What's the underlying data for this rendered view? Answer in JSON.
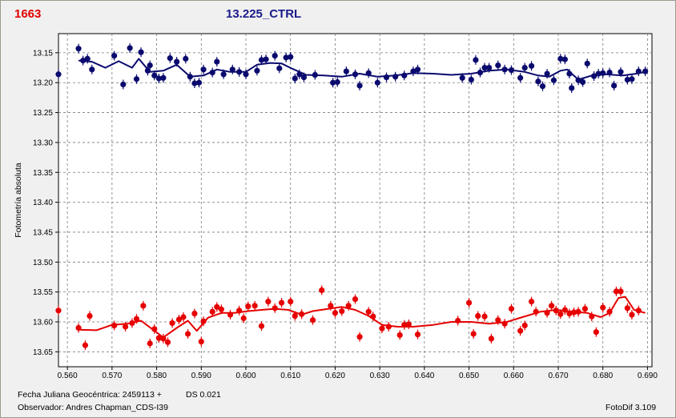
{
  "header": {
    "id_label": "1663",
    "title": "13.225_CTRL"
  },
  "footer": {
    "date_label": "Fecha Juliana Geocéntrica: 2459113 +",
    "ds_label": "DS 0.021",
    "observer_label": "Observador: Andres Chapman_CDS-I39",
    "software_label": "FotoDif 3.109"
  },
  "colors": {
    "blue_series": "#0a0a6e",
    "red_series": "#e60000",
    "plot_bg": "#ffffff",
    "grid": "#7a7a7a"
  },
  "chart_data": {
    "type": "scatter",
    "title": "13.225_CTRL",
    "xlabel": "",
    "ylabel": "Fotometría absoluta",
    "xlim": [
      0.558,
      0.691
    ],
    "ylim": [
      13.675,
      13.118
    ],
    "y_reversed": true,
    "grid": true,
    "xticks": [
      "0.560",
      "0.570",
      "0.580",
      "0.590",
      "0.600",
      "0.610",
      "0.620",
      "0.630",
      "0.640",
      "0.650",
      "0.660",
      "0.670",
      "0.680",
      "0.690"
    ],
    "yticks": [
      "13.15",
      "13.20",
      "13.25",
      "13.30",
      "13.35",
      "13.40",
      "13.45",
      "13.50",
      "13.55",
      "13.60",
      "13.65"
    ],
    "series": [
      {
        "color": "blue",
        "points": [
          [
            0.558,
            13.186
          ],
          [
            0.5625,
            13.143
          ],
          [
            0.5635,
            13.163
          ],
          [
            0.5645,
            13.16
          ],
          [
            0.5655,
            13.178
          ],
          [
            0.5705,
            13.155
          ],
          [
            0.5725,
            13.203
          ],
          [
            0.574,
            13.142
          ],
          [
            0.5755,
            13.194
          ],
          [
            0.5765,
            13.149
          ],
          [
            0.578,
            13.18
          ],
          [
            0.5785,
            13.171
          ],
          [
            0.5795,
            13.188
          ],
          [
            0.5805,
            13.193
          ],
          [
            0.5815,
            13.192
          ],
          [
            0.583,
            13.159
          ],
          [
            0.5845,
            13.165
          ],
          [
            0.5865,
            13.16
          ],
          [
            0.5875,
            13.19
          ],
          [
            0.5885,
            13.201
          ],
          [
            0.5895,
            13.2
          ],
          [
            0.5905,
            13.178
          ],
          [
            0.5925,
            13.183
          ],
          [
            0.5935,
            13.165
          ],
          [
            0.595,
            13.186
          ],
          [
            0.597,
            13.178
          ],
          [
            0.5985,
            13.182
          ],
          [
            0.6,
            13.186
          ],
          [
            0.6025,
            13.18
          ],
          [
            0.6035,
            13.162
          ],
          [
            0.6045,
            13.161
          ],
          [
            0.6065,
            13.155
          ],
          [
            0.6075,
            13.176
          ],
          [
            0.609,
            13.158
          ],
          [
            0.61,
            13.157
          ],
          [
            0.611,
            13.193
          ],
          [
            0.612,
            13.186
          ],
          [
            0.613,
            13.191
          ],
          [
            0.6155,
            13.187
          ],
          [
            0.6195,
            13.2
          ],
          [
            0.6205,
            13.199
          ],
          [
            0.6225,
            13.181
          ],
          [
            0.6245,
            13.186
          ],
          [
            0.6255,
            13.205
          ],
          [
            0.6275,
            13.184
          ],
          [
            0.6295,
            13.2
          ],
          [
            0.6315,
            13.191
          ],
          [
            0.6335,
            13.19
          ],
          [
            0.6355,
            13.188
          ],
          [
            0.6375,
            13.181
          ],
          [
            0.6385,
            13.178
          ],
          [
            0.6485,
            13.192
          ],
          [
            0.6505,
            13.195
          ],
          [
            0.6515,
            13.162
          ],
          [
            0.6525,
            13.183
          ],
          [
            0.6535,
            13.175
          ],
          [
            0.6545,
            13.175
          ],
          [
            0.6565,
            13.171
          ],
          [
            0.658,
            13.178
          ],
          [
            0.6595,
            13.179
          ],
          [
            0.6615,
            13.192
          ],
          [
            0.6625,
            13.175
          ],
          [
            0.664,
            13.172
          ],
          [
            0.6655,
            13.198
          ],
          [
            0.6665,
            13.206
          ],
          [
            0.6675,
            13.185
          ],
          [
            0.669,
            13.196
          ],
          [
            0.6705,
            13.16
          ],
          [
            0.6715,
            13.161
          ],
          [
            0.6725,
            13.185
          ],
          [
            0.673,
            13.209
          ],
          [
            0.6745,
            13.196
          ],
          [
            0.6755,
            13.199
          ],
          [
            0.6765,
            13.168
          ],
          [
            0.678,
            13.189
          ],
          [
            0.679,
            13.185
          ],
          [
            0.68,
            13.184
          ],
          [
            0.6815,
            13.183
          ],
          [
            0.6825,
            13.205
          ],
          [
            0.684,
            13.182
          ],
          [
            0.6855,
            13.195
          ],
          [
            0.6865,
            13.194
          ],
          [
            0.688,
            13.181
          ],
          [
            0.6895,
            13.181
          ]
        ],
        "smooth": [
          [
            0.5625,
            13.163
          ],
          [
            0.5655,
            13.165
          ],
          [
            0.5685,
            13.175
          ],
          [
            0.5715,
            13.164
          ],
          [
            0.5745,
            13.175
          ],
          [
            0.576,
            13.16
          ],
          [
            0.5785,
            13.182
          ],
          [
            0.5815,
            13.18
          ],
          [
            0.5845,
            13.17
          ],
          [
            0.5875,
            13.19
          ],
          [
            0.5905,
            13.188
          ],
          [
            0.5935,
            13.178
          ],
          [
            0.5965,
            13.182
          ],
          [
            0.6,
            13.182
          ],
          [
            0.6025,
            13.17
          ],
          [
            0.6055,
            13.167
          ],
          [
            0.608,
            13.168
          ],
          [
            0.6105,
            13.177
          ],
          [
            0.6135,
            13.187
          ],
          [
            0.6175,
            13.188
          ],
          [
            0.6215,
            13.19
          ],
          [
            0.6255,
            13.185
          ],
          [
            0.6295,
            13.19
          ],
          [
            0.6335,
            13.188
          ],
          [
            0.6375,
            13.184
          ],
          [
            0.642,
            13.185
          ],
          [
            0.646,
            13.187
          ],
          [
            0.6505,
            13.185
          ],
          [
            0.6545,
            13.18
          ],
          [
            0.6585,
            13.178
          ],
          [
            0.6625,
            13.182
          ],
          [
            0.6655,
            13.188
          ],
          [
            0.668,
            13.19
          ],
          [
            0.6705,
            13.18
          ],
          [
            0.672,
            13.178
          ],
          [
            0.6745,
            13.195
          ],
          [
            0.6775,
            13.188
          ],
          [
            0.6805,
            13.186
          ],
          [
            0.6845,
            13.188
          ],
          [
            0.6875,
            13.185
          ],
          [
            0.6895,
            13.182
          ]
        ]
      },
      {
        "color": "red",
        "points": [
          [
            0.558,
            13.581
          ],
          [
            0.5625,
            13.61
          ],
          [
            0.564,
            13.639
          ],
          [
            0.565,
            13.59
          ],
          [
            0.5705,
            13.606
          ],
          [
            0.573,
            13.608
          ],
          [
            0.5745,
            13.602
          ],
          [
            0.5755,
            13.595
          ],
          [
            0.577,
            13.573
          ],
          [
            0.5785,
            13.636
          ],
          [
            0.5795,
            13.612
          ],
          [
            0.5805,
            13.627
          ],
          [
            0.5815,
            13.628
          ],
          [
            0.5825,
            13.634
          ],
          [
            0.5835,
            13.602
          ],
          [
            0.585,
            13.596
          ],
          [
            0.586,
            13.592
          ],
          [
            0.587,
            13.62
          ],
          [
            0.5885,
            13.586
          ],
          [
            0.59,
            13.633
          ],
          [
            0.5905,
            13.599
          ],
          [
            0.5925,
            13.583
          ],
          [
            0.5935,
            13.575
          ],
          [
            0.5945,
            13.579
          ],
          [
            0.5965,
            13.588
          ],
          [
            0.5985,
            13.581
          ],
          [
            0.5995,
            13.594
          ],
          [
            0.6005,
            13.574
          ],
          [
            0.602,
            13.573
          ],
          [
            0.6035,
            13.607
          ],
          [
            0.605,
            13.566
          ],
          [
            0.6065,
            13.577
          ],
          [
            0.608,
            13.568
          ],
          [
            0.61,
            13.566
          ],
          [
            0.611,
            13.59
          ],
          [
            0.6125,
            13.587
          ],
          [
            0.615,
            13.597
          ],
          [
            0.617,
            13.547
          ],
          [
            0.619,
            13.573
          ],
          [
            0.62,
            13.585
          ],
          [
            0.6215,
            13.582
          ],
          [
            0.623,
            13.573
          ],
          [
            0.6245,
            13.562
          ],
          [
            0.6255,
            13.625
          ],
          [
            0.6275,
            13.583
          ],
          [
            0.6285,
            13.591
          ],
          [
            0.6305,
            13.611
          ],
          [
            0.632,
            13.608
          ],
          [
            0.6345,
            13.622
          ],
          [
            0.6355,
            13.605
          ],
          [
            0.6365,
            13.604
          ],
          [
            0.6385,
            13.621
          ],
          [
            0.6475,
            13.598
          ],
          [
            0.65,
            13.568
          ],
          [
            0.651,
            13.62
          ],
          [
            0.652,
            13.59
          ],
          [
            0.6535,
            13.591
          ],
          [
            0.655,
            13.628
          ],
          [
            0.6565,
            13.597
          ],
          [
            0.658,
            13.603
          ],
          [
            0.6595,
            13.578
          ],
          [
            0.6615,
            13.615
          ],
          [
            0.6625,
            13.606
          ],
          [
            0.664,
            13.566
          ],
          [
            0.665,
            13.583
          ],
          [
            0.6675,
            13.585
          ],
          [
            0.6685,
            13.573
          ],
          [
            0.6695,
            13.581
          ],
          [
            0.6705,
            13.587
          ],
          [
            0.6715,
            13.58
          ],
          [
            0.6725,
            13.586
          ],
          [
            0.6735,
            13.584
          ],
          [
            0.6745,
            13.583
          ],
          [
            0.676,
            13.578
          ],
          [
            0.6775,
            13.591
          ],
          [
            0.6785,
            13.617
          ],
          [
            0.68,
            13.576
          ],
          [
            0.6815,
            13.583
          ],
          [
            0.683,
            13.549
          ],
          [
            0.684,
            13.549
          ],
          [
            0.6855,
            13.577
          ],
          [
            0.6865,
            13.588
          ],
          [
            0.688,
            13.581
          ]
        ],
        "smooth": [
          [
            0.5625,
            13.613
          ],
          [
            0.5665,
            13.614
          ],
          [
            0.57,
            13.605
          ],
          [
            0.5735,
            13.603
          ],
          [
            0.5765,
            13.598
          ],
          [
            0.579,
            13.612
          ],
          [
            0.5815,
            13.626
          ],
          [
            0.5845,
            13.61
          ],
          [
            0.587,
            13.598
          ],
          [
            0.589,
            13.615
          ],
          [
            0.5915,
            13.593
          ],
          [
            0.5945,
            13.585
          ],
          [
            0.5975,
            13.585
          ],
          [
            0.6005,
            13.582
          ],
          [
            0.6035,
            13.58
          ],
          [
            0.6065,
            13.578
          ],
          [
            0.6095,
            13.58
          ],
          [
            0.6125,
            13.588
          ],
          [
            0.615,
            13.582
          ],
          [
            0.6185,
            13.578
          ],
          [
            0.6215,
            13.575
          ],
          [
            0.6245,
            13.58
          ],
          [
            0.6275,
            13.59
          ],
          [
            0.6305,
            13.605
          ],
          [
            0.634,
            13.608
          ],
          [
            0.6375,
            13.608
          ],
          [
            0.642,
            13.605
          ],
          [
            0.646,
            13.6
          ],
          [
            0.6505,
            13.6
          ],
          [
            0.6545,
            13.603
          ],
          [
            0.6585,
            13.6
          ],
          [
            0.662,
            13.592
          ],
          [
            0.666,
            13.583
          ],
          [
            0.6695,
            13.58
          ],
          [
            0.673,
            13.583
          ],
          [
            0.6765,
            13.585
          ],
          [
            0.6795,
            13.592
          ],
          [
            0.6815,
            13.585
          ],
          [
            0.6835,
            13.56
          ],
          [
            0.685,
            13.558
          ],
          [
            0.687,
            13.58
          ],
          [
            0.6895,
            13.585
          ]
        ]
      }
    ]
  }
}
